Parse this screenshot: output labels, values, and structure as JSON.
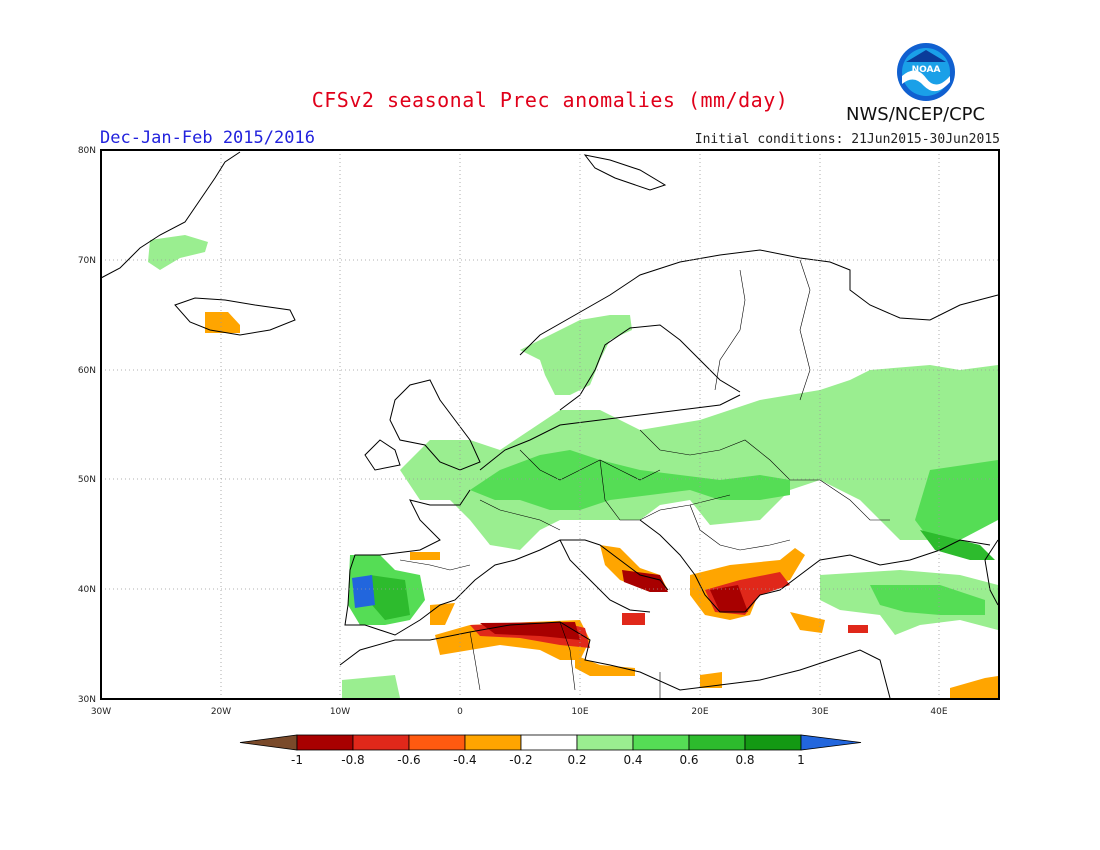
{
  "title": "CFSv2 seasonal Prec anomalies (mm/day)",
  "period": "Dec-Jan-Feb 2015/2016",
  "initial_conditions": "Initial conditions: 21Jun2015-30Jun2015",
  "agency": "NWS/NCEP/CPC",
  "logo_text": "NOAA",
  "axes": {
    "lon_ticks": [
      "30W",
      "20W",
      "10W",
      "0",
      "10E",
      "20E",
      "30E",
      "40E"
    ],
    "lat_ticks": [
      "80N",
      "70N",
      "60N",
      "50N",
      "40N",
      "30N"
    ],
    "lon_range": [
      -30,
      45
    ],
    "lat_range": [
      30,
      80
    ],
    "grid": "dotted"
  },
  "colorbar": {
    "labels": [
      "-1",
      "-0.8",
      "-0.6",
      "-0.4",
      "-0.2",
      "0.2",
      "0.4",
      "0.6",
      "0.8",
      "1"
    ],
    "colors": [
      "#7a4a2a",
      "#a80000",
      "#e0281a",
      "#ff5a10",
      "#ffa500",
      "#ffffff",
      "#9aee90",
      "#55dd55",
      "#2dbb2d",
      "#139913",
      "#2266dd"
    ]
  }
}
